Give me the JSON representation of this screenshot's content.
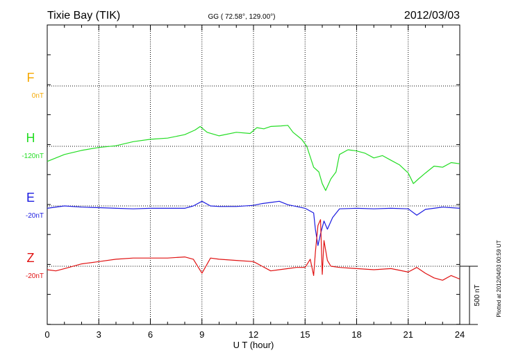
{
  "header": {
    "station": "Tixie Bay (TIK)",
    "coords": "GG ( 72.58°, 129.00°)",
    "date": "2012/03/03"
  },
  "footer": {
    "plotted": "Plotted at 2012/04/03 00:59 UT"
  },
  "chart_data": {
    "type": "line",
    "title": "Tixie Bay (TIK)",
    "xlabel": "U T (hour)",
    "xlim": [
      0,
      24
    ],
    "xticks": [
      0,
      3,
      6,
      9,
      12,
      15,
      18,
      21,
      24
    ],
    "grid": true,
    "scale_bar": {
      "label": "500 nT",
      "value_nT": 500
    },
    "series": [
      {
        "name": "F",
        "offset_label": "0nT",
        "color": "#f5a800",
        "baseline_nT": 0,
        "t": [],
        "values": []
      },
      {
        "name": "H",
        "offset_label": "-120nT",
        "color": "#22dd22",
        "baseline_nT": -120,
        "t": [
          0,
          0.5,
          1,
          2,
          3,
          4,
          5,
          6,
          7,
          8,
          8.6,
          8.9,
          9.3,
          10,
          11,
          11.8,
          12.2,
          12.6,
          13,
          13.6,
          14,
          14.3,
          14.8,
          15.1,
          15.5,
          15.8,
          16,
          16.2,
          16.5,
          16.8,
          17,
          17.5,
          18,
          18.5,
          19,
          19.5,
          20,
          20.5,
          21,
          21.3,
          21.6,
          22,
          22.5,
          23,
          23.5,
          24
        ],
        "values": [
          -130,
          -100,
          -70,
          -35,
          -10,
          5,
          40,
          60,
          70,
          100,
          140,
          170,
          120,
          90,
          120,
          110,
          160,
          150,
          170,
          175,
          180,
          120,
          60,
          0,
          -180,
          -220,
          -320,
          -380,
          -280,
          -220,
          -70,
          -30,
          -40,
          -60,
          -100,
          -80,
          -120,
          -160,
          -230,
          -320,
          -280,
          -230,
          -170,
          -180,
          -140,
          -150
        ]
      },
      {
        "name": "E",
        "offset_label": "-20nT",
        "color": "#1a1ae0",
        "baseline_nT": -20,
        "t": [
          0,
          1,
          2,
          3,
          4,
          5,
          6,
          7,
          8,
          8.5,
          9,
          9.5,
          10,
          11,
          12,
          12.5,
          13,
          13.5,
          14,
          14.5,
          15,
          15.5,
          15.6,
          15.75,
          15.9,
          16.1,
          16.3,
          16.6,
          17,
          18,
          19,
          20,
          21,
          21.5,
          22,
          23,
          24
        ],
        "values": [
          -20,
          0,
          -10,
          -15,
          -20,
          -25,
          -20,
          -20,
          -20,
          0,
          40,
          0,
          -5,
          -5,
          5,
          20,
          30,
          40,
          10,
          -5,
          -20,
          -60,
          -200,
          -340,
          -240,
          -130,
          -200,
          -100,
          -25,
          -20,
          -25,
          -20,
          -25,
          -80,
          -30,
          -10,
          -20
        ]
      },
      {
        "name": "Z",
        "offset_label": "-20nT",
        "color": "#e01010",
        "baseline_nT": -20,
        "t": [
          0,
          0.5,
          1,
          2,
          3,
          4,
          5,
          6,
          7,
          8,
          8.5,
          9,
          9.5,
          10,
          11,
          12,
          12.5,
          13,
          13.5,
          14,
          14.5,
          15,
          15.3,
          15.5,
          15.6,
          15.75,
          15.9,
          16,
          16.1,
          16.3,
          16.5,
          17,
          18,
          19,
          20,
          21,
          21.5,
          22,
          22.5,
          23,
          23.5,
          24
        ],
        "values": [
          -30,
          -40,
          -20,
          20,
          40,
          60,
          70,
          70,
          70,
          80,
          60,
          -60,
          70,
          60,
          50,
          40,
          0,
          -40,
          -30,
          -20,
          -10,
          -10,
          60,
          -80,
          120,
          350,
          400,
          -70,
          220,
          50,
          0,
          -10,
          -20,
          -30,
          -20,
          -50,
          -10,
          -60,
          -100,
          -120,
          -80,
          -110
        ]
      }
    ]
  }
}
